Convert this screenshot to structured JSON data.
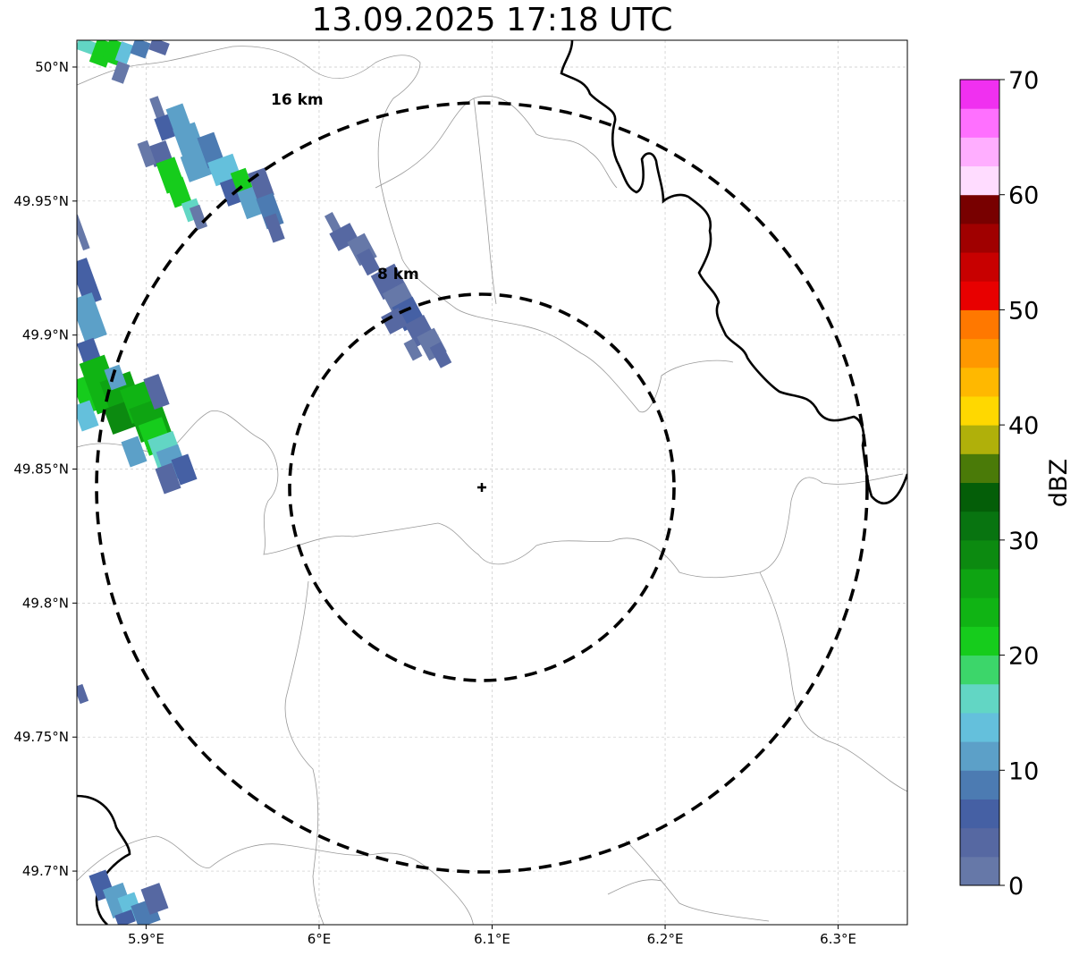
{
  "title": "13.09.2025 17:18 UTC",
  "map": {
    "lon_range": [
      5.86,
      6.34
    ],
    "lat_range": [
      49.68,
      50.01
    ],
    "x_ticks": [
      {
        "value": 5.9,
        "label": "5.9°E"
      },
      {
        "value": 6.0,
        "label": "6°E"
      },
      {
        "value": 6.1,
        "label": "6.1°E"
      },
      {
        "value": 6.2,
        "label": "6.2°E"
      },
      {
        "value": 6.3,
        "label": "6.3°E"
      }
    ],
    "y_ticks": [
      {
        "value": 50.0,
        "label": "50°N"
      },
      {
        "value": 49.95,
        "label": "49.95°N"
      },
      {
        "value": 49.9,
        "label": "49.9°N"
      },
      {
        "value": 49.85,
        "label": "49.85°N"
      },
      {
        "value": 49.8,
        "label": "49.8°N"
      },
      {
        "value": 49.75,
        "label": "49.75°N"
      },
      {
        "value": 49.7,
        "label": "49.7°N"
      }
    ],
    "gridlines": true,
    "center": {
      "lon": 6.094,
      "lat": 49.843,
      "marker": "plus-marker"
    },
    "range_rings": [
      {
        "radius_km": 8,
        "label": "8 km",
        "style": "dashed"
      },
      {
        "radius_km": 16,
        "label": "16 km",
        "style": "dashed"
      }
    ],
    "echoes_dbz_range": [
      0,
      30
    ]
  },
  "colorbar": {
    "label": "dBZ",
    "min": 0,
    "max": 70,
    "ticks": [
      {
        "value": 0,
        "label": "0"
      },
      {
        "value": 10,
        "label": "10"
      },
      {
        "value": 20,
        "label": "20"
      },
      {
        "value": 30,
        "label": "30"
      },
      {
        "value": 40,
        "label": "40"
      },
      {
        "value": 50,
        "label": "50"
      },
      {
        "value": 60,
        "label": "60"
      },
      {
        "value": 70,
        "label": "70"
      }
    ],
    "colors": [
      "#6678a8",
      "#5668a2",
      "#4560a4",
      "#4c7bb2",
      "#5ca0c8",
      "#64c0dc",
      "#62d6c4",
      "#3cd66a",
      "#16cc1c",
      "#10b414",
      "#0ea412",
      "#0c8a10",
      "#087410",
      "#045e08",
      "#4a7a08",
      "#b0b00a",
      "#ffd800",
      "#ffb800",
      "#ff9800",
      "#ff7800",
      "#e80000",
      "#c80000",
      "#a00000",
      "#780000",
      "#ffdcff",
      "#ffaeff",
      "#ff70ff",
      "#f030f0"
    ]
  }
}
